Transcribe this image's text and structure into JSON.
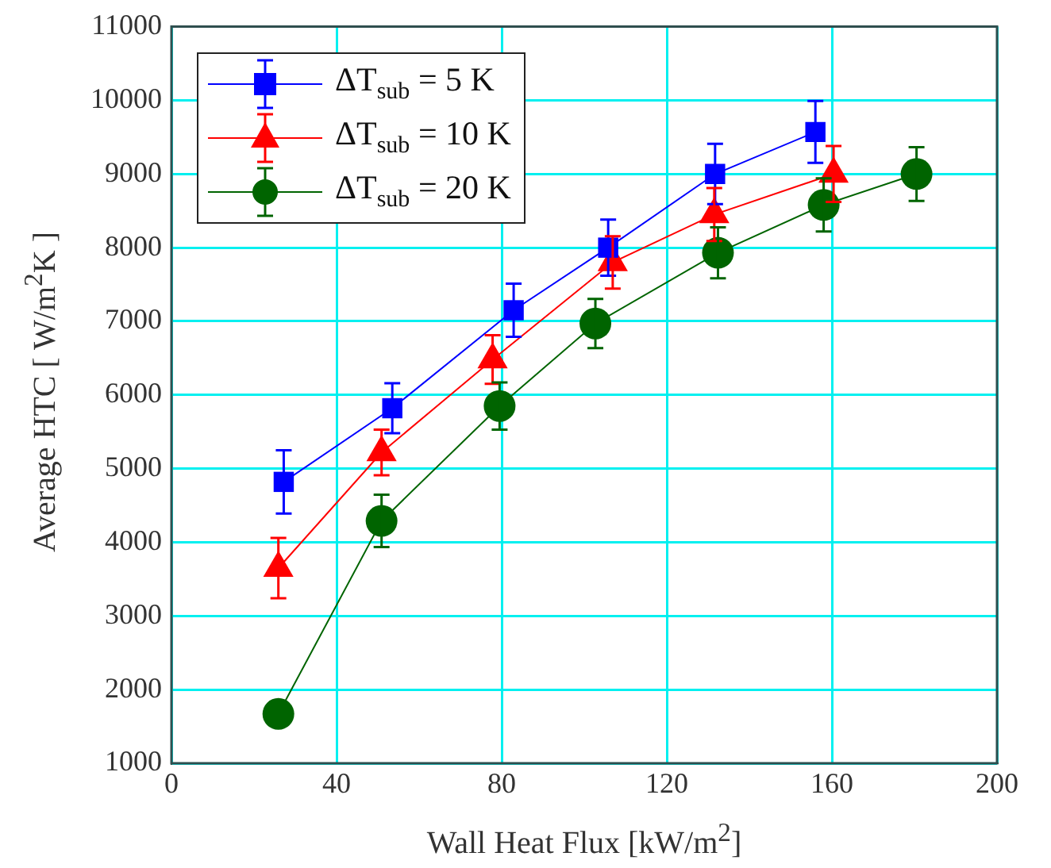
{
  "chart_data": {
    "type": "line",
    "xlabel": "Wall Heat Flux [kW/m$^{2}$]",
    "ylabel": "Average HTC [ W/m$^{2}$K ]",
    "xlim": [
      0,
      200
    ],
    "xticks": [
      0,
      40,
      80,
      120,
      160,
      200
    ],
    "ylim": [
      1000,
      11000
    ],
    "yticks": [
      1000,
      2000,
      3000,
      4000,
      5000,
      6000,
      7000,
      8000,
      9000,
      10000,
      11000
    ],
    "grid": true,
    "legend": "top left",
    "series": [
      {
        "name": "ΔT$_{sub}$ = 5 K",
        "color": "#0000ff",
        "marker": "square",
        "x": [
          27.2,
          53.5,
          82.9,
          105.8,
          131.7,
          156
        ],
        "values": [
          4820,
          5820,
          7150,
          8000,
          9000,
          9570
        ],
        "errors": [
          430,
          340,
          360,
          380,
          410,
          420
        ]
      },
      {
        "name": "ΔT$_{sub}$ = 10 K",
        "color": "#ff0000",
        "marker": "triangle",
        "x": [
          25.9,
          50.9,
          77.8,
          106.9,
          131.5,
          160.4
        ],
        "values": [
          3650,
          5220,
          6480,
          7800,
          8450,
          9000
        ],
        "errors": [
          410,
          310,
          330,
          355,
          360,
          380
        ]
      },
      {
        "name": "ΔT$_{sub}$ = 20 K",
        "color": "#006400",
        "marker": "circle",
        "x": [
          25.9,
          50.9,
          79.5,
          102.7,
          132.4,
          158,
          180.5
        ],
        "values": [
          1670,
          4290,
          5850,
          6970,
          7930,
          8580,
          9000
        ],
        "errors": [
          null,
          355,
          320,
          335,
          345,
          360,
          365
        ]
      }
    ]
  }
}
